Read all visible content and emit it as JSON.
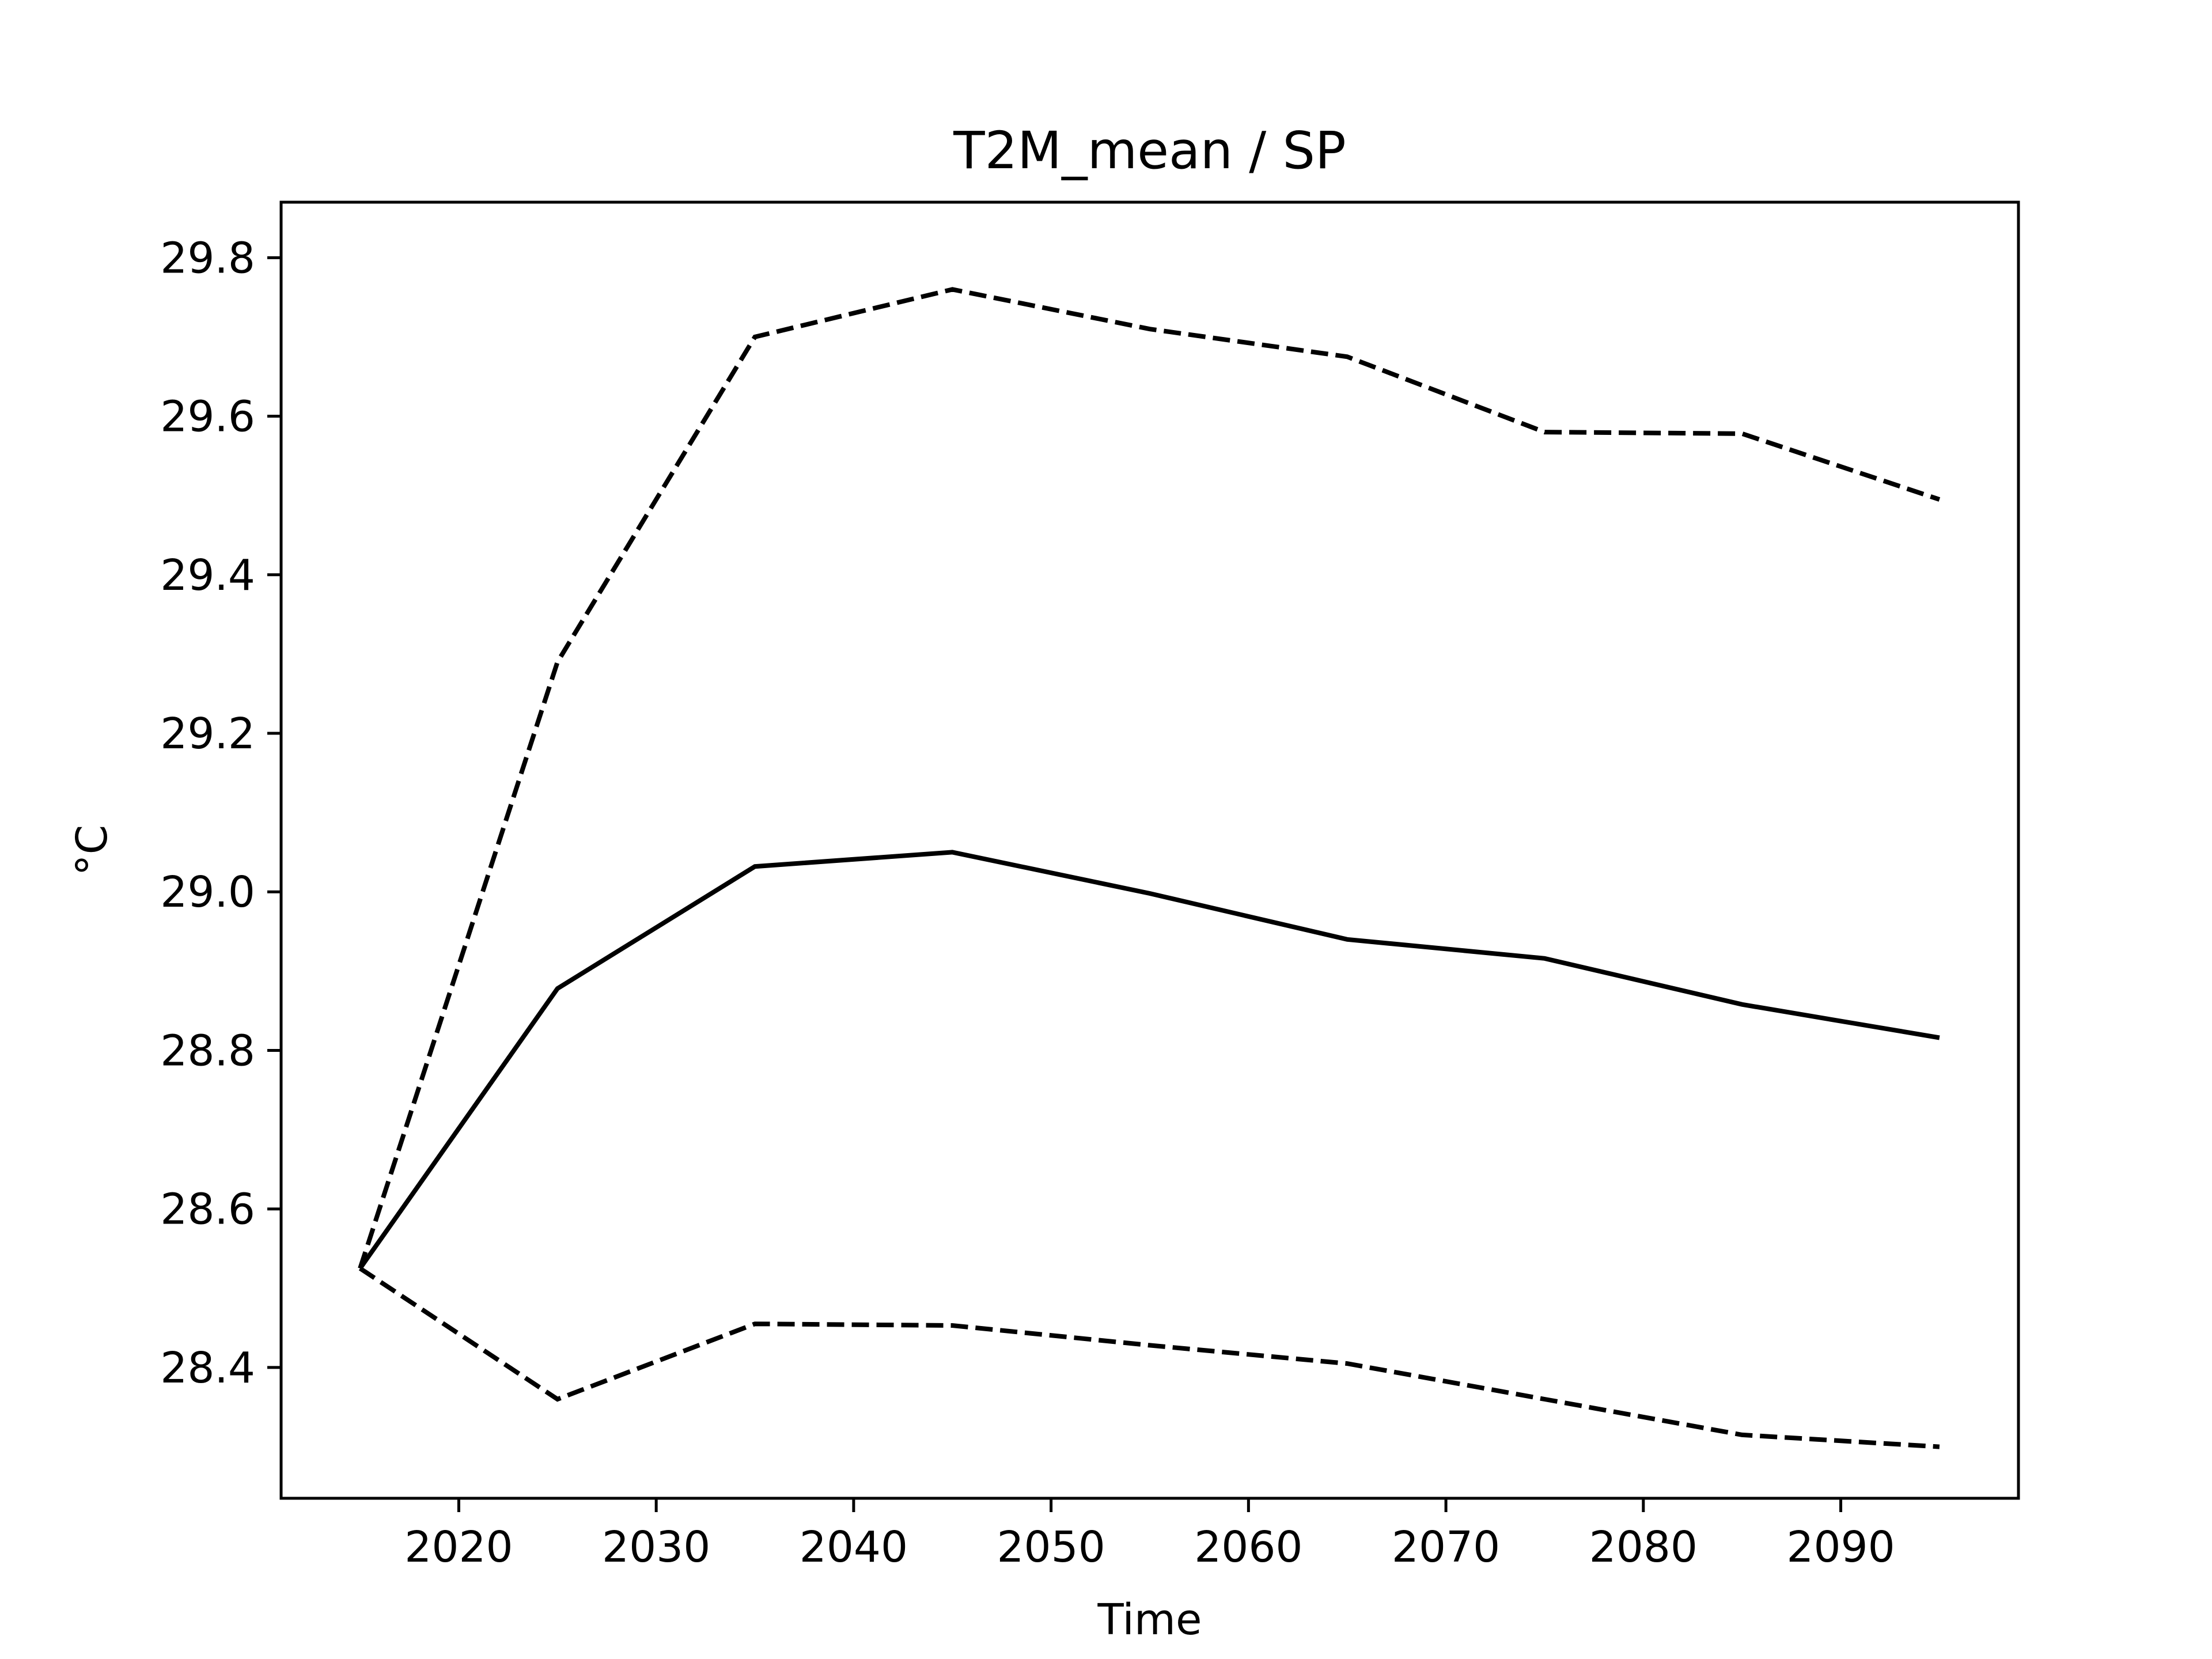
{
  "chart_data": {
    "type": "line",
    "title": "T2M_mean / SP",
    "xlabel": "Time",
    "ylabel": "°C",
    "xlim": [
      2011,
      2099
    ],
    "ylim": [
      28.235,
      29.87
    ],
    "xticks": [
      2020,
      2030,
      2040,
      2050,
      2060,
      2070,
      2080,
      2090
    ],
    "xtick_labels": [
      "2020",
      "2030",
      "2040",
      "2050",
      "2060",
      "2070",
      "2080",
      "2090"
    ],
    "yticks": [
      28.4,
      28.6,
      28.8,
      29.0,
      29.2,
      29.4,
      29.6,
      29.8
    ],
    "ytick_labels": [
      "28.4",
      "28.6",
      "28.8",
      "29.0",
      "29.2",
      "29.4",
      "29.6",
      "29.8"
    ],
    "grid": false,
    "legend": false,
    "x": [
      2015,
      2025,
      2035,
      2045,
      2055,
      2065,
      2075,
      2085,
      2095
    ],
    "series": [
      {
        "style": "dashed",
        "color": "#000000",
        "values": [
          28.525,
          29.29,
          29.7,
          29.76,
          29.71,
          29.675,
          29.58,
          29.578,
          29.495
        ]
      },
      {
        "style": "solid",
        "color": "#000000",
        "values": [
          28.525,
          28.878,
          29.032,
          29.05,
          28.998,
          28.94,
          28.916,
          28.858,
          28.816
        ]
      },
      {
        "style": "dashed",
        "color": "#000000",
        "values": [
          28.525,
          28.36,
          28.455,
          28.453,
          28.428,
          28.405,
          28.36,
          28.315,
          28.3
        ]
      }
    ]
  }
}
